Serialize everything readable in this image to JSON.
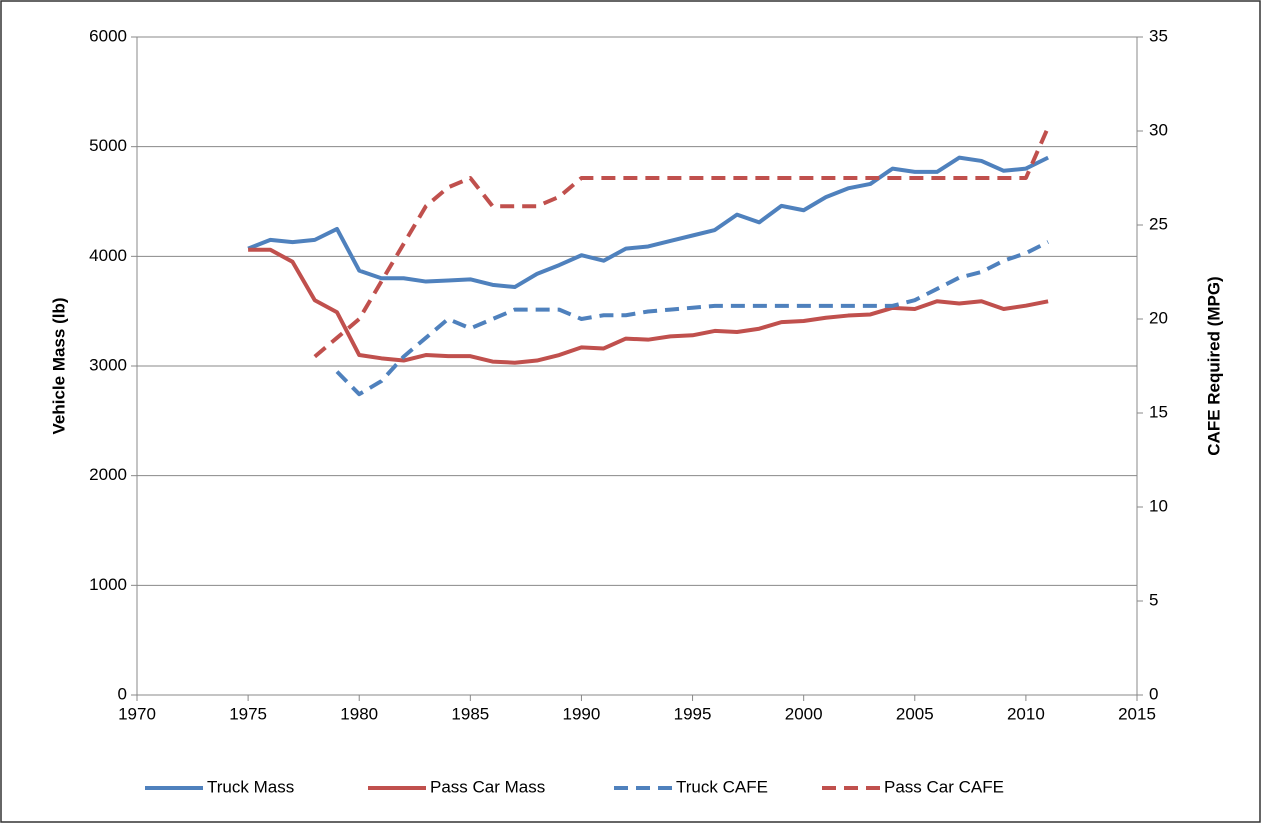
{
  "chart_data": {
    "type": "line",
    "y_label": "Vehicle Mass (lb)",
    "y2_label": "CAFE Required (MPG)",
    "x": [
      1975,
      1976,
      1977,
      1978,
      1979,
      1980,
      1981,
      1982,
      1983,
      1984,
      1985,
      1986,
      1987,
      1988,
      1989,
      1990,
      1991,
      1992,
      1993,
      1994,
      1995,
      1996,
      1997,
      1998,
      1999,
      2000,
      2001,
      2002,
      2003,
      2004,
      2005,
      2006,
      2007,
      2008,
      2009,
      2010,
      2011
    ],
    "series": [
      {
        "name": "Truck Mass",
        "color": "#4f81bd",
        "dash": false,
        "values": [
          4070,
          4150,
          4130,
          4150,
          4250,
          3870,
          3800,
          3800,
          3770,
          3780,
          3790,
          3740,
          3720,
          3840,
          3920,
          4010,
          3960,
          4070,
          4090,
          4140,
          4190,
          4240,
          4380,
          4310,
          4460,
          4420,
          4540,
          4620,
          4660,
          4800,
          4770,
          4770,
          4900,
          4870,
          4780,
          4800,
          4900
        ]
      },
      {
        "name": "Pass Car Mass",
        "color": "#c0504d",
        "dash": false,
        "values": [
          4060,
          4060,
          3950,
          3600,
          3490,
          3100,
          3070,
          3050,
          3100,
          3090,
          3090,
          3040,
          3030,
          3050,
          3100,
          3170,
          3160,
          3250,
          3240,
          3270,
          3280,
          3320,
          3310,
          3340,
          3400,
          3410,
          3440,
          3460,
          3470,
          3530,
          3520,
          3590,
          3570,
          3590,
          3520,
          3550,
          3590
        ]
      },
      {
        "name": "Truck CAFE",
        "color": "#4f81bd",
        "dash": true,
        "axis": "y2",
        "values": [
          null,
          null,
          null,
          null,
          17.2,
          16.0,
          16.7,
          18.0,
          19.0,
          20.0,
          19.5,
          20.0,
          20.5,
          20.5,
          20.5,
          20.0,
          20.2,
          20.2,
          20.4,
          20.5,
          20.6,
          20.7,
          20.7,
          20.7,
          20.7,
          20.7,
          20.7,
          20.7,
          20.7,
          20.7,
          21.0,
          21.6,
          22.2,
          22.5,
          23.1,
          23.5,
          24.1
        ]
      },
      {
        "name": "Pass Car CAFE",
        "color": "#c0504d",
        "dash": true,
        "axis": "y2",
        "values": [
          null,
          null,
          null,
          18.0,
          19.0,
          20.0,
          22.0,
          24.0,
          26.0,
          27.0,
          27.5,
          26.0,
          26.0,
          26.0,
          26.5,
          27.5,
          27.5,
          27.5,
          27.5,
          27.5,
          27.5,
          27.5,
          27.5,
          27.5,
          27.5,
          27.5,
          27.5,
          27.5,
          27.5,
          27.5,
          27.5,
          27.5,
          27.5,
          27.5,
          27.5,
          27.5,
          30.2
        ]
      }
    ],
    "xlim": [
      1970,
      2015
    ],
    "xticks": [
      1970,
      1975,
      1980,
      1985,
      1990,
      1995,
      2000,
      2005,
      2010,
      2015
    ],
    "ylim": [
      0,
      6000
    ],
    "yticks": [
      0,
      1000,
      2000,
      3000,
      4000,
      5000,
      6000
    ],
    "y2lim": [
      0,
      35
    ],
    "y2ticks": [
      0,
      5,
      10,
      15,
      20,
      25,
      30,
      35
    ],
    "grid": true,
    "legend": "bottom"
  }
}
